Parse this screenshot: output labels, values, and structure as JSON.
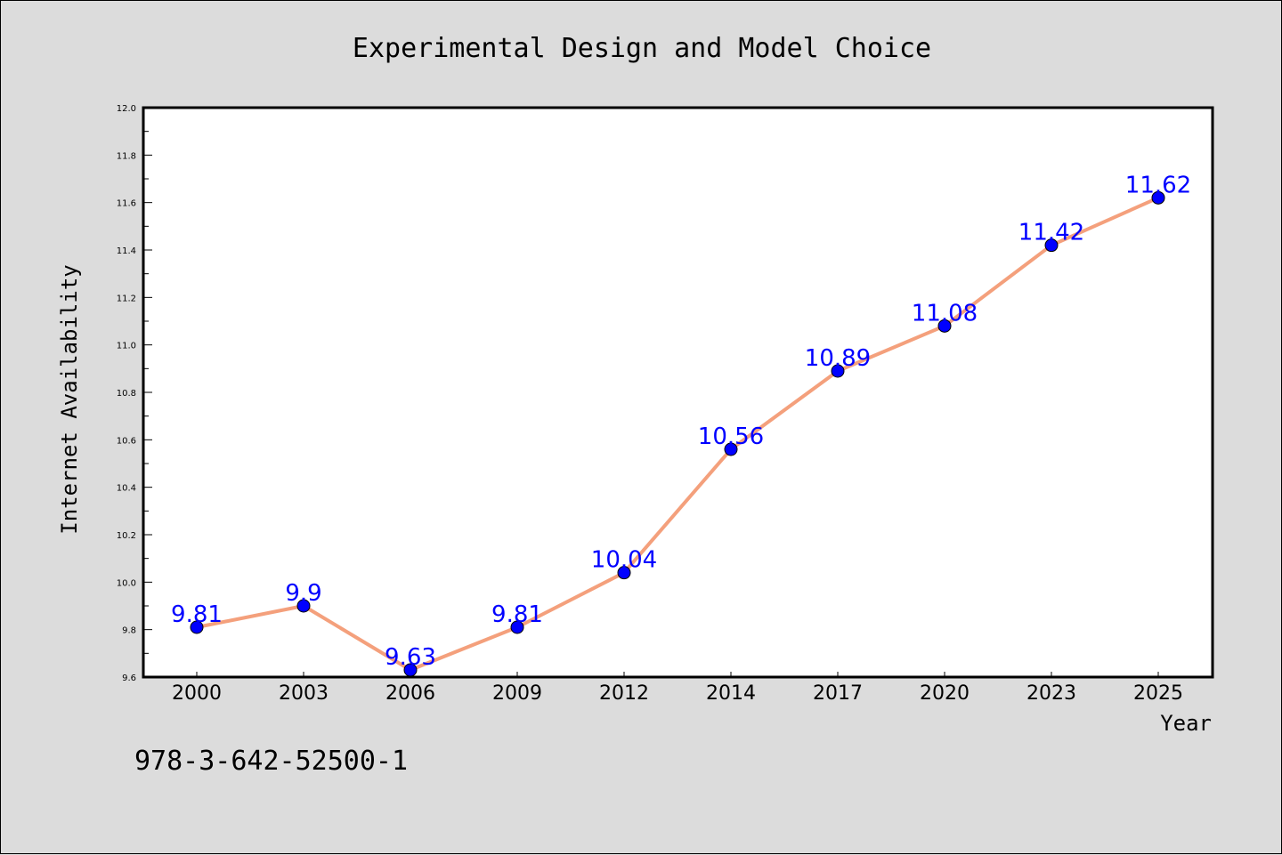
{
  "chart_data": {
    "type": "line",
    "title": "Experimental Design and Model Choice",
    "xlabel": "Year",
    "ylabel": "Internet Availability",
    "categories": [
      "2000",
      "2003",
      "2006",
      "2009",
      "2012",
      "2014",
      "2017",
      "2020",
      "2023",
      "2025"
    ],
    "series": [
      {
        "values": [
          9.81,
          9.9,
          9.63,
          9.81,
          10.04,
          10.56,
          10.89,
          11.08,
          11.42,
          11.62
        ],
        "labels": [
          "9.81",
          "9.9",
          "9.63",
          "9.81",
          "10.04",
          "10.56",
          "10.89",
          "11.08",
          "11.42",
          "11.62"
        ],
        "line_color": "#f4a07c",
        "marker_color": "#0000ff"
      }
    ],
    "ylim": [
      9.6,
      12.0
    ],
    "yticks": [
      "9.6",
      "9.8",
      "10.0",
      "10.2",
      "10.4",
      "10.6",
      "10.8",
      "11.0",
      "11.2",
      "11.4",
      "11.6",
      "11.8",
      "12.0"
    ],
    "grid": false,
    "legend": "none"
  },
  "footnote": "978-3-642-52500-1",
  "colors": {
    "background": "#dcdcdc",
    "plot_background": "#ffffff",
    "line": "#f4a07c",
    "marker": "#0000ff",
    "data_label": "#0000ff"
  }
}
